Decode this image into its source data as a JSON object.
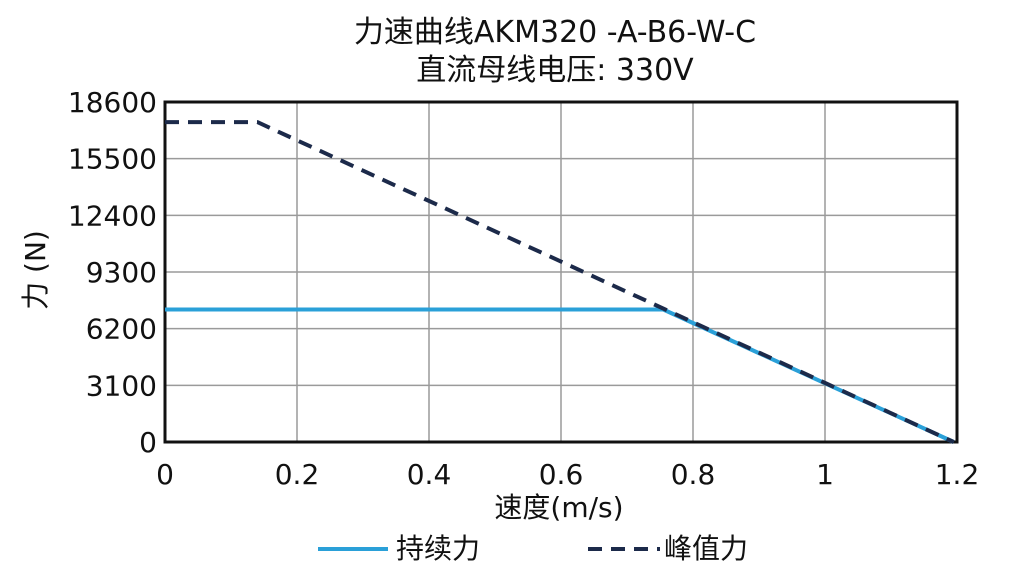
{
  "chart_data": {
    "type": "line",
    "title": "力速曲线AKM320 -A-B6-W-C",
    "subtitle": "直流母线电压: 330V",
    "xlabel": "速度(m/s)",
    "ylabel": "力 (N)",
    "xlim": [
      0,
      1.2
    ],
    "ylim": [
      0,
      18600
    ],
    "xticks": [
      0,
      0.2,
      0.4,
      0.6,
      0.8,
      1,
      1.2
    ],
    "xtick_labels": [
      "0",
      "0.2",
      "0.4",
      "0.6",
      "0.8",
      "1",
      "1.2"
    ],
    "yticks": [
      0,
      3100,
      6200,
      9300,
      12400,
      15500,
      18600
    ],
    "ytick_labels": [
      "0",
      "3100",
      "6200",
      "9300",
      "12400",
      "15500",
      "18600"
    ],
    "grid": true,
    "legend_position": "bottom",
    "series": [
      {
        "name": "持续力",
        "color": "#2aa0d8",
        "style": "solid",
        "x": [
          0,
          0.755,
          1.195
        ],
        "y": [
          7250,
          7250,
          0
        ]
      },
      {
        "name": "峰值力",
        "color": "#1c2a4a",
        "style": "dashed",
        "x": [
          0,
          0.14,
          1.195
        ],
        "y": [
          17500,
          17500,
          0
        ]
      }
    ]
  }
}
